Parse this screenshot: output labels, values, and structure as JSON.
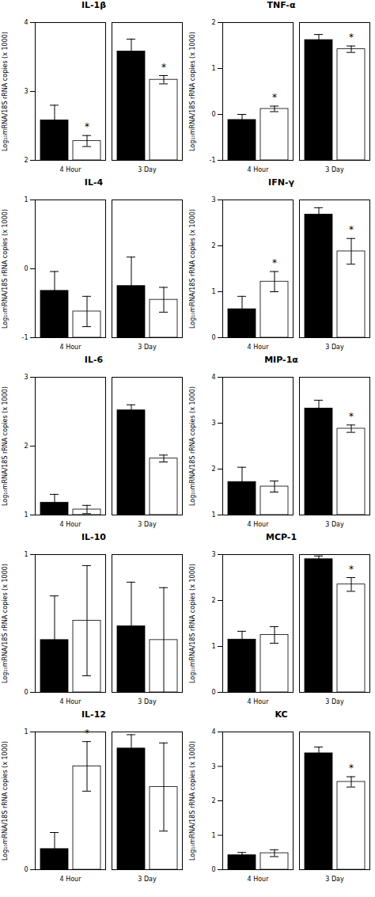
{
  "chart_data": [
    {
      "type": "bar",
      "title": "IL-1β",
      "ylabel": "Log₁₀mRNA/18S rRNA copies (x 1000)",
      "categories": [
        "4 Hour",
        "3 Day"
      ],
      "series": [
        {
          "color": "black",
          "values": [
            2.58,
            3.58
          ],
          "errors": [
            0.22,
            0.18
          ],
          "annotations": [
            null,
            null
          ]
        },
        {
          "color": "white",
          "values": [
            2.28,
            3.17
          ],
          "errors": [
            0.08,
            0.06
          ],
          "annotations": [
            "*",
            "*"
          ]
        }
      ],
      "ylim": [
        2,
        4
      ],
      "yticks": [
        2,
        3,
        4
      ]
    },
    {
      "type": "bar",
      "title": "TNF-α",
      "ylabel": "Log₁₀mRNA/18S rRNA copies (x 1000)",
      "categories": [
        "4 Hour",
        "3 Day"
      ],
      "series": [
        {
          "color": "black",
          "values": [
            -0.12,
            1.62
          ],
          "errors": [
            0.12,
            0.12
          ],
          "annotations": [
            null,
            null
          ]
        },
        {
          "color": "white",
          "values": [
            0.12,
            1.42
          ],
          "errors": [
            0.06,
            0.07
          ],
          "annotations": [
            "*",
            "*"
          ]
        }
      ],
      "ylim": [
        -1,
        2
      ],
      "yticks": [
        -1,
        0,
        1,
        2
      ]
    },
    {
      "type": "bar",
      "title": "IL-4",
      "ylabel": "Log₁₀mRNA/18S rRNA copies (x 1000)",
      "categories": [
        "4 Hour",
        "3 Day"
      ],
      "series": [
        {
          "color": "black",
          "values": [
            -0.32,
            -0.25
          ],
          "errors": [
            0.28,
            0.42
          ],
          "annotations": [
            null,
            null
          ]
        },
        {
          "color": "white",
          "values": [
            -0.62,
            -0.45
          ],
          "errors": [
            0.22,
            0.18
          ],
          "annotations": [
            null,
            null
          ]
        }
      ],
      "ylim": [
        -1,
        1
      ],
      "yticks": [
        -1,
        0,
        1
      ]
    },
    {
      "type": "bar",
      "title": "IFN-γ",
      "ylabel": "Log₁₀mRNA/18S rRNA copies (x 1000)",
      "categories": [
        "4 Hour",
        "3 Day"
      ],
      "series": [
        {
          "color": "black",
          "values": [
            0.62,
            2.68
          ],
          "errors": [
            0.28,
            0.15
          ],
          "annotations": [
            null,
            null
          ]
        },
        {
          "color": "white",
          "values": [
            1.22,
            1.88
          ],
          "errors": [
            0.22,
            0.28
          ],
          "annotations": [
            "*",
            "*"
          ]
        }
      ],
      "ylim": [
        0,
        3
      ],
      "yticks": [
        0,
        1,
        2,
        3
      ]
    },
    {
      "type": "bar",
      "title": "IL-6",
      "ylabel": "Log₁₀mRNA/18S rRNA copies (x 1000)",
      "categories": [
        "4 Hour",
        "3 Day"
      ],
      "series": [
        {
          "color": "black",
          "values": [
            1.18,
            2.52
          ],
          "errors": [
            0.12,
            0.08
          ],
          "annotations": [
            null,
            null
          ]
        },
        {
          "color": "white",
          "values": [
            1.08,
            1.82
          ],
          "errors": [
            0.06,
            0.05
          ],
          "annotations": [
            null,
            null
          ]
        }
      ],
      "ylim": [
        1,
        3
      ],
      "yticks": [
        1,
        2,
        3
      ]
    },
    {
      "type": "bar",
      "title": "MIP-1α",
      "ylabel": "Log₁₀mRNA/18S rRNA copies (x 1000)",
      "categories": [
        "4 Hour",
        "3 Day"
      ],
      "series": [
        {
          "color": "black",
          "values": [
            1.72,
            3.32
          ],
          "errors": [
            0.32,
            0.18
          ],
          "annotations": [
            null,
            null
          ]
        },
        {
          "color": "white",
          "values": [
            1.62,
            2.88
          ],
          "errors": [
            0.12,
            0.08
          ],
          "annotations": [
            null,
            "*"
          ]
        }
      ],
      "ylim": [
        1,
        4
      ],
      "yticks": [
        1,
        2,
        3,
        4
      ]
    },
    {
      "type": "bar",
      "title": "IL-10",
      "ylabel": "Log₁₀mRNA/18S rRNA copies (x 1000)",
      "categories": [
        "4 Hour",
        "3 Day"
      ],
      "series": [
        {
          "color": "black",
          "values": [
            0.38,
            0.48
          ],
          "errors": [
            0.32,
            0.32
          ],
          "annotations": [
            null,
            null
          ]
        },
        {
          "color": "white",
          "values": [
            0.52,
            0.38
          ],
          "errors": [
            0.4,
            0.38
          ],
          "annotations": [
            null,
            null
          ]
        }
      ],
      "ylim": [
        0,
        1
      ],
      "yticks": [
        0,
        1
      ]
    },
    {
      "type": "bar",
      "title": "MCP-1",
      "ylabel": "Log₁₀mRNA/18S rRNA copies (x 1000)",
      "categories": [
        "4 Hour",
        "3 Day"
      ],
      "series": [
        {
          "color": "black",
          "values": [
            1.15,
            2.9
          ],
          "errors": [
            0.18,
            0.07
          ],
          "annotations": [
            null,
            null
          ]
        },
        {
          "color": "white",
          "values": [
            1.25,
            2.35
          ],
          "errors": [
            0.18,
            0.15
          ],
          "annotations": [
            null,
            "*"
          ]
        }
      ],
      "ylim": [
        0,
        3
      ],
      "yticks": [
        0,
        1,
        2,
        3
      ]
    },
    {
      "type": "bar",
      "title": "IL-12",
      "ylabel": "Log₁₀mRNA/18S rRNA copies (x 1000)",
      "categories": [
        "4 Hour",
        "3 Day"
      ],
      "series": [
        {
          "color": "black",
          "values": [
            0.15,
            0.88
          ],
          "errors": [
            0.12,
            0.1
          ],
          "annotations": [
            null,
            null
          ]
        },
        {
          "color": "white",
          "values": [
            0.75,
            0.6
          ],
          "errors": [
            0.18,
            0.32
          ],
          "annotations": [
            "*",
            null
          ]
        }
      ],
      "ylim": [
        0,
        1
      ],
      "yticks": [
        0,
        1
      ]
    },
    {
      "type": "bar",
      "title": "KC",
      "ylabel": "Log₁₀mRNA/18S rRNA copies (x 1000)",
      "categories": [
        "4 Hour",
        "3 Day"
      ],
      "series": [
        {
          "color": "black",
          "values": [
            0.42,
            3.38
          ],
          "errors": [
            0.08,
            0.18
          ],
          "annotations": [
            null,
            null
          ]
        },
        {
          "color": "white",
          "values": [
            0.48,
            2.55
          ],
          "errors": [
            0.1,
            0.15
          ],
          "annotations": [
            null,
            "*"
          ]
        }
      ],
      "ylim": [
        0,
        4
      ],
      "yticks": [
        0,
        1,
        2,
        3,
        4
      ]
    }
  ]
}
